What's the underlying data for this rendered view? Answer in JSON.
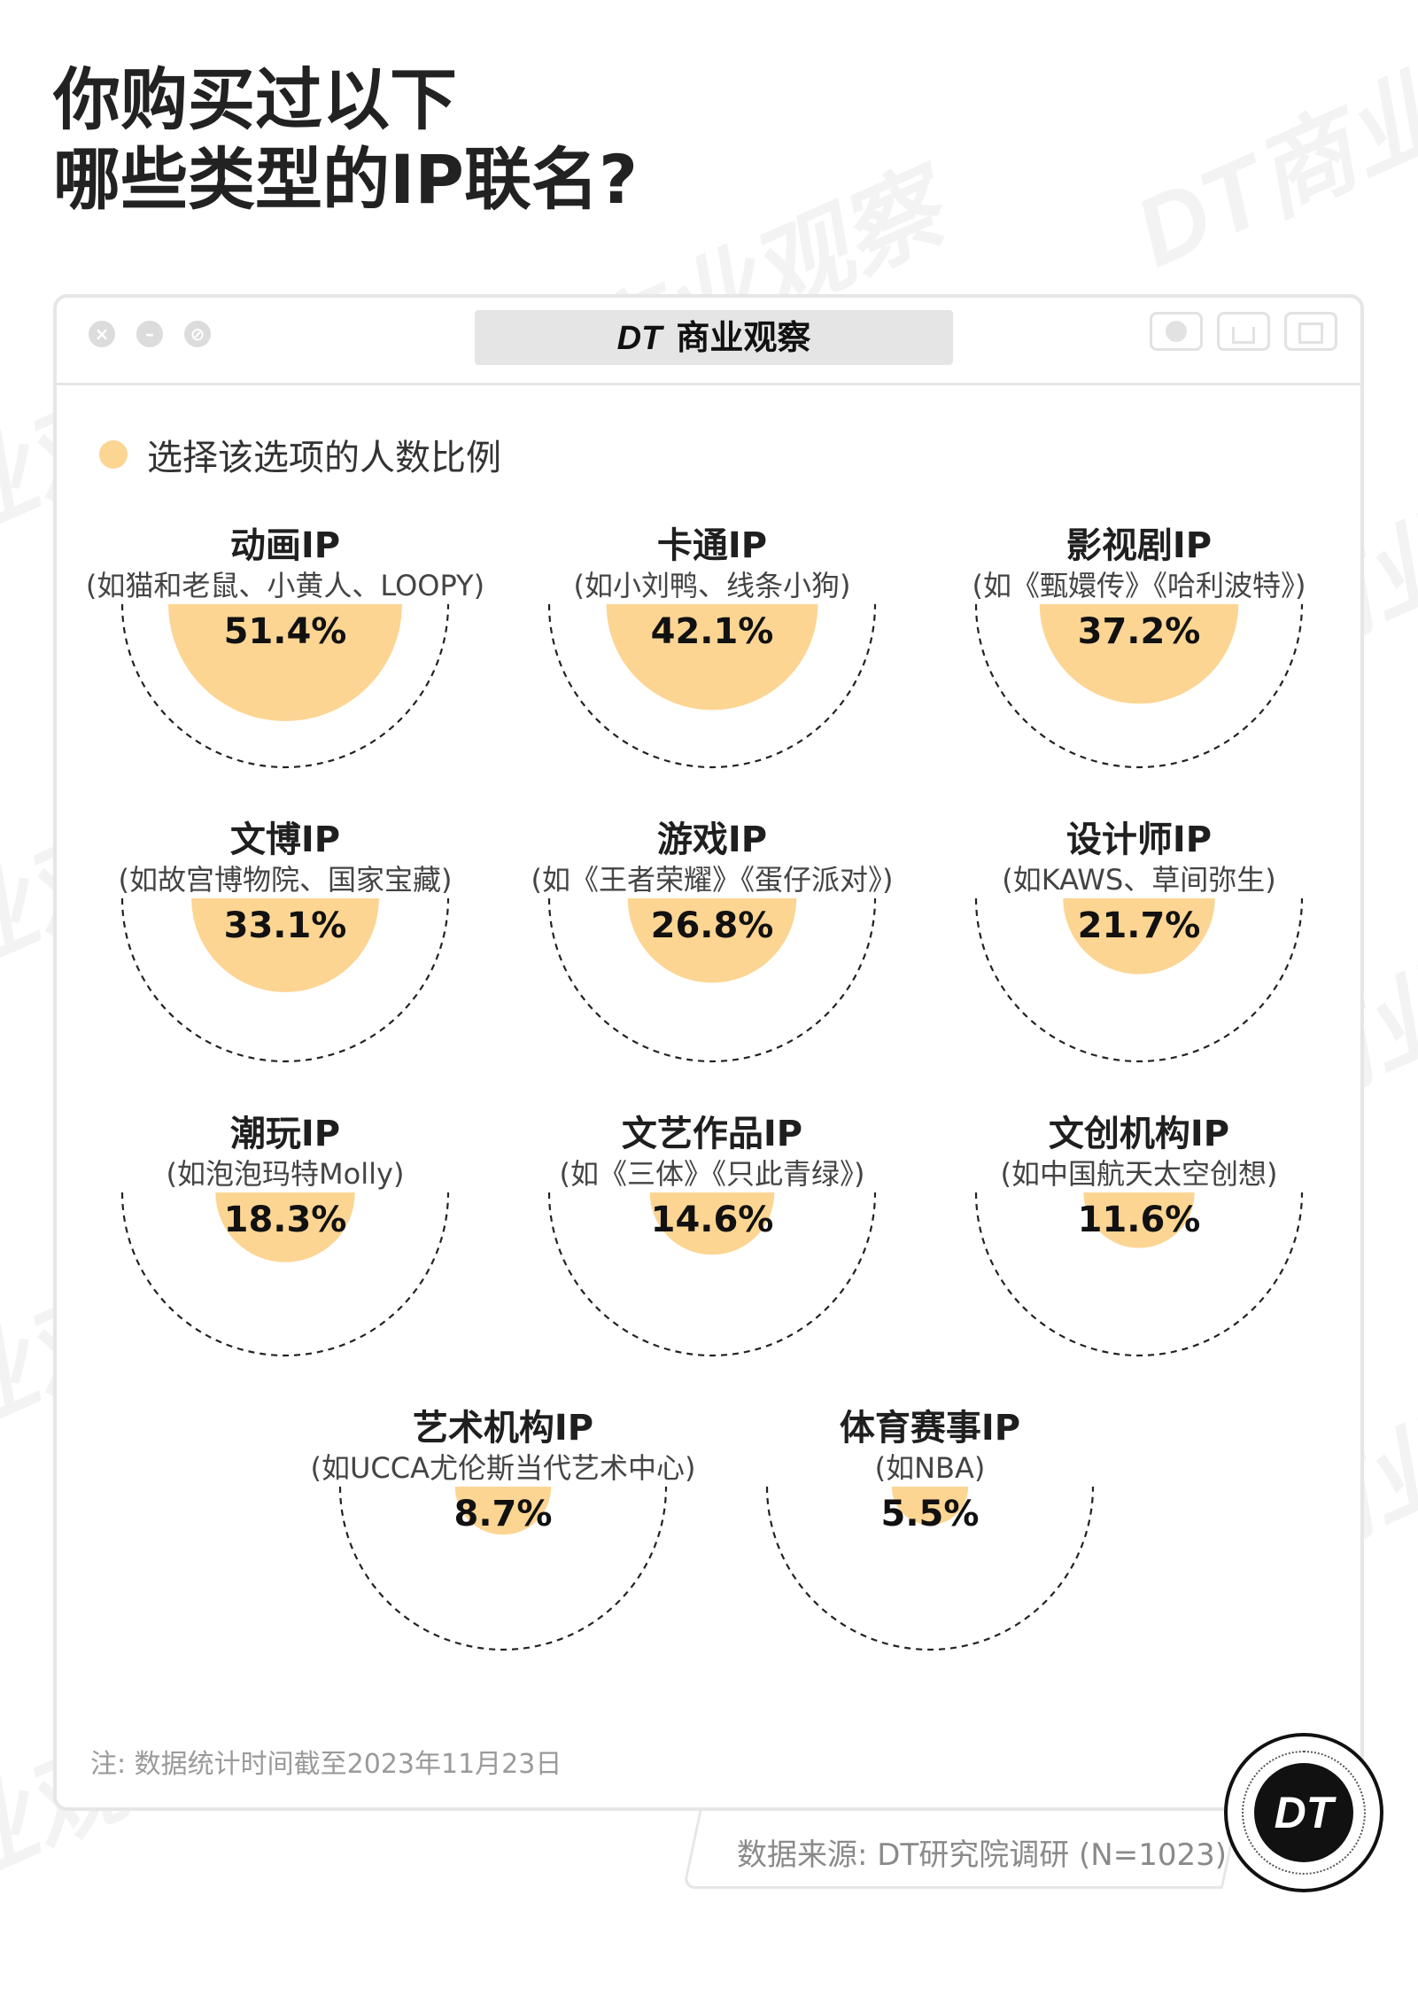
{
  "title": {
    "line1": "你购买过以下",
    "line2": "哪些类型的IP联名?"
  },
  "window": {
    "tab_logo": "DT",
    "tab_title": "商业观察"
  },
  "watermark": {
    "text": "DT商业观察"
  },
  "legend": {
    "label": "选择该选项的人数比例",
    "color": "#fcd593"
  },
  "chart_data": {
    "type": "bubble",
    "unit": "%",
    "series": [
      {
        "name": "选择该选项的人数比例",
        "color": "#fcd593"
      }
    ],
    "items": [
      {
        "name": "动画IP",
        "sub": "(如猫和老鼠、小黄人、LOOPY)",
        "value": 51.4,
        "label": "51.4%"
      },
      {
        "name": "卡通IP",
        "sub": "(如小刘鸭、线条小狗)",
        "value": 42.1,
        "label": "42.1%"
      },
      {
        "name": "影视剧IP",
        "sub": "(如《甄嬛传》《哈利波特》)",
        "value": 37.2,
        "label": "37.2%"
      },
      {
        "name": "文博IP",
        "sub": "(如故宫博物院、国家宝藏)",
        "value": 33.1,
        "label": "33.1%"
      },
      {
        "name": "游戏IP",
        "sub": "(如《王者荣耀》《蛋仔派对》)",
        "value": 26.8,
        "label": "26.8%"
      },
      {
        "name": "设计师IP",
        "sub": "(如KAWS、草间弥生)",
        "value": 21.7,
        "label": "21.7%"
      },
      {
        "name": "潮玩IP",
        "sub": "(如泡泡玛特Molly)",
        "value": 18.3,
        "label": "18.3%"
      },
      {
        "name": "文艺作品IP",
        "sub": "(如《三体》《只此青绿》)",
        "value": 14.6,
        "label": "14.6%"
      },
      {
        "name": "文创机构IP",
        "sub": "(如中国航天太空创想)",
        "value": 11.6,
        "label": "11.6%"
      },
      {
        "name": "艺术机构IP",
        "sub": "(如UCCA尤伦斯当代艺术中心)",
        "value": 8.7,
        "label": "8.7%"
      },
      {
        "name": "体育赛事IP",
        "sub": "(如NBA)",
        "value": 5.5,
        "label": "5.5%"
      }
    ]
  },
  "footer": {
    "note": "注: 数据统计时间截至2023年11月23日",
    "source": "数据来源: DT研究院调研 (N=1023)",
    "logo": "DT"
  }
}
